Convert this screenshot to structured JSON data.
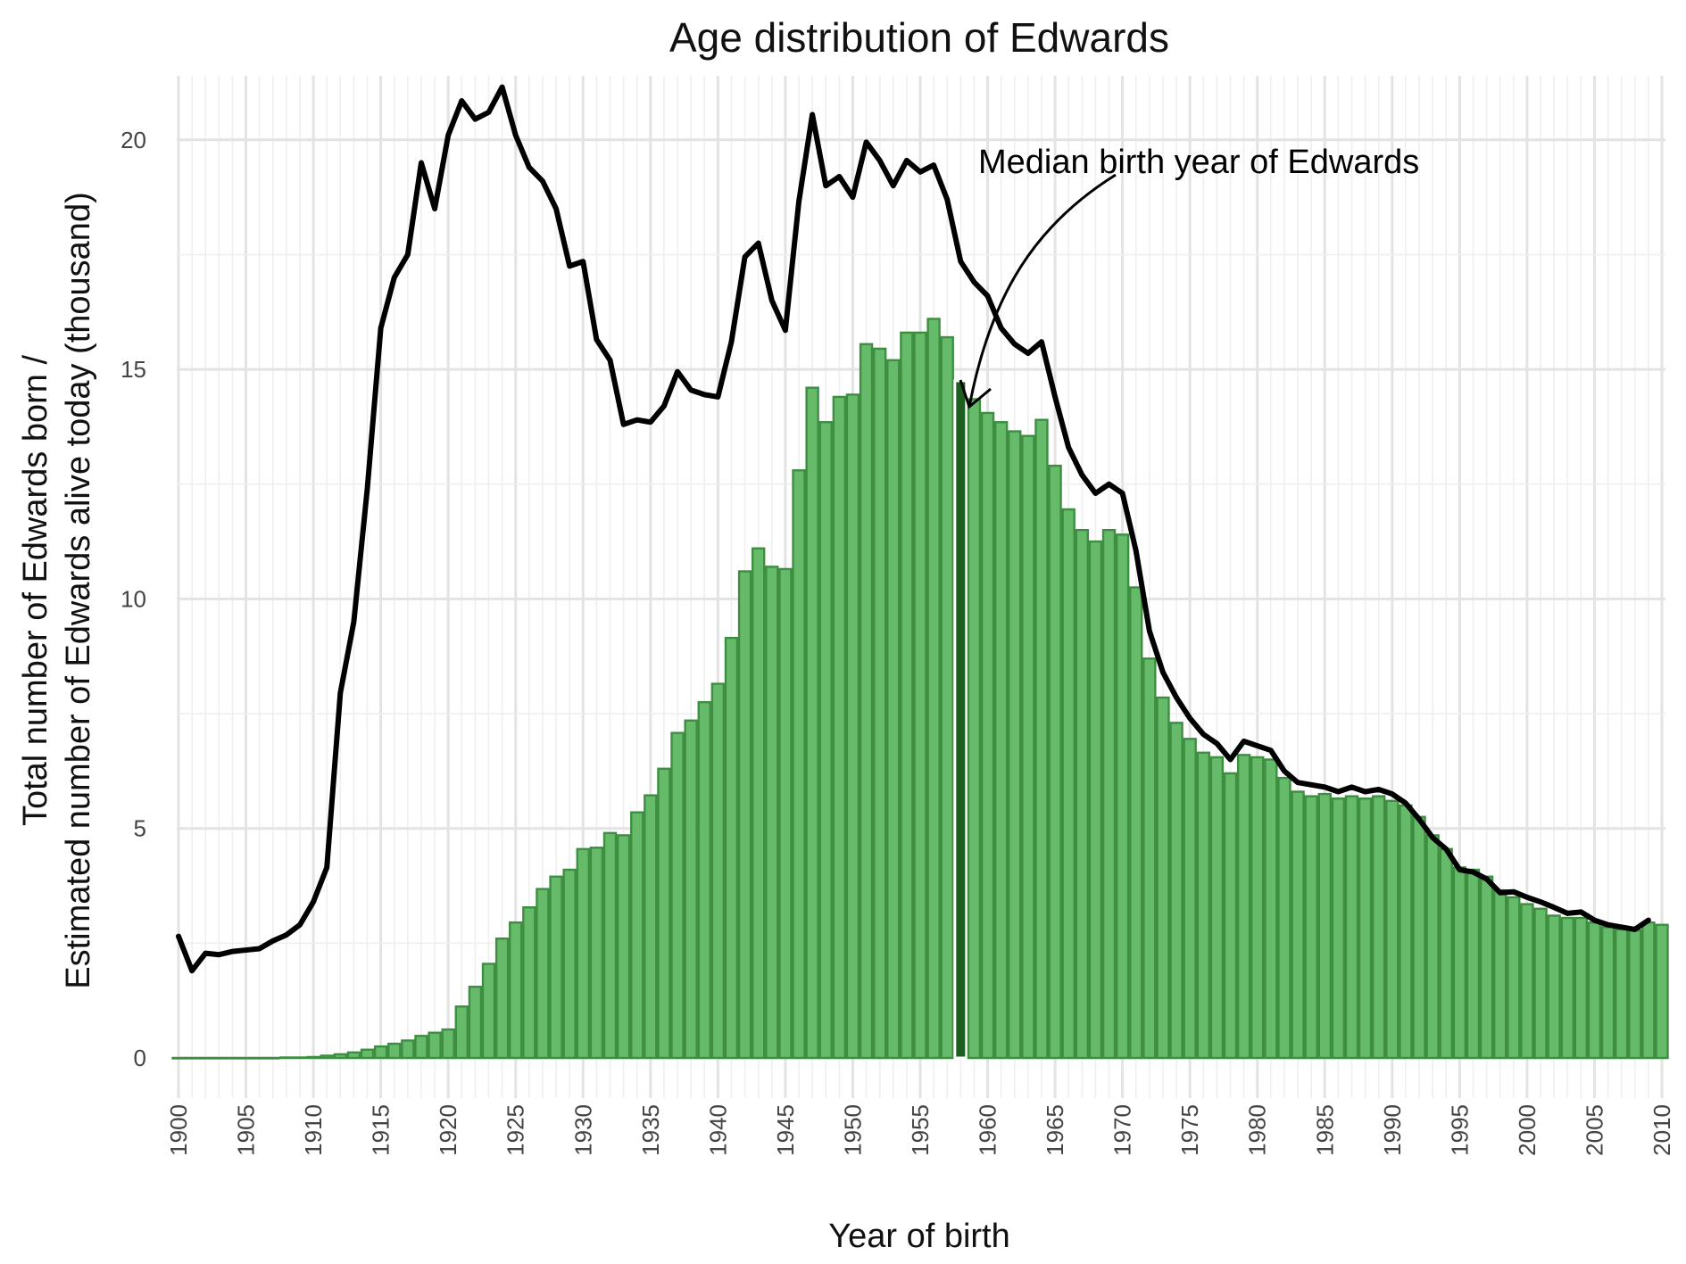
{
  "chart_data": {
    "type": "bar",
    "title": "Age distribution of Edwards",
    "xlabel": "Year of birth",
    "ylabel_line1": "Total number of Edwards born /",
    "ylabel_line2": "Estimated number of Edwards alive today (thousand)",
    "xlim": [
      1900,
      2010
    ],
    "ylim": [
      0,
      21.2
    ],
    "x_ticks": [
      1900,
      1905,
      1910,
      1915,
      1920,
      1925,
      1930,
      1935,
      1940,
      1945,
      1950,
      1955,
      1960,
      1965,
      1970,
      1975,
      1980,
      1985,
      1990,
      1995,
      2000,
      2005,
      2010
    ],
    "y_ticks": [
      0,
      5,
      10,
      15,
      20
    ],
    "grid": true,
    "colors": {
      "bars": "#66bb6a",
      "bar_outline": "#3e8e41",
      "median_bar": "#1b5e20",
      "line": "#000000"
    },
    "median_year": 1958,
    "annotation": "Median birth year of Edwards",
    "series": [
      {
        "type": "bar",
        "x": [
          1900,
          1901,
          1902,
          1903,
          1904,
          1905,
          1906,
          1907,
          1908,
          1909,
          1910,
          1911,
          1912,
          1913,
          1914,
          1915,
          1916,
          1917,
          1918,
          1919,
          1920,
          1921,
          1922,
          1923,
          1924,
          1925,
          1926,
          1927,
          1928,
          1929,
          1930,
          1931,
          1932,
          1933,
          1934,
          1935,
          1936,
          1937,
          1938,
          1939,
          1940,
          1941,
          1942,
          1943,
          1944,
          1945,
          1946,
          1947,
          1948,
          1949,
          1950,
          1951,
          1952,
          1953,
          1954,
          1955,
          1956,
          1957,
          1958,
          1959,
          1960,
          1961,
          1962,
          1963,
          1964,
          1965,
          1966,
          1967,
          1968,
          1969,
          1970,
          1971,
          1972,
          1973,
          1974,
          1975,
          1976,
          1977,
          1978,
          1979,
          1980,
          1981,
          1982,
          1983,
          1984,
          1985,
          1986,
          1987,
          1988,
          1989,
          1990,
          1991,
          1992,
          1993,
          1994,
          1995,
          1996,
          1997,
          1998,
          1999,
          2000,
          2001,
          2002,
          2003,
          2004,
          2005,
          2006,
          2007,
          2008,
          2009,
          2010
        ],
        "values": [
          0.0,
          0.0,
          0.0,
          0.0,
          0.0,
          0.0,
          0.0,
          0.0,
          0.01,
          0.01,
          0.02,
          0.05,
          0.08,
          0.12,
          0.18,
          0.25,
          0.31,
          0.38,
          0.48,
          0.55,
          0.62,
          1.12,
          1.55,
          2.05,
          2.6,
          2.95,
          3.28,
          3.68,
          3.95,
          4.1,
          4.55,
          4.58,
          4.9,
          4.85,
          5.35,
          5.72,
          6.3,
          7.08,
          7.35,
          7.75,
          8.15,
          9.15,
          10.6,
          11.1,
          10.7,
          10.65,
          12.8,
          14.6,
          13.85,
          14.4,
          14.45,
          15.55,
          15.45,
          15.2,
          15.8,
          15.8,
          16.1,
          15.7,
          14.75,
          14.35,
          14.05,
          13.85,
          13.65,
          13.55,
          13.9,
          12.9,
          11.95,
          11.5,
          11.25,
          11.5,
          11.4,
          10.25,
          8.7,
          7.85,
          7.3,
          6.95,
          6.65,
          6.55,
          6.2,
          6.6,
          6.55,
          6.5,
          6.1,
          5.8,
          5.7,
          5.75,
          5.65,
          5.7,
          5.65,
          5.7,
          5.6,
          5.5,
          5.25,
          4.85,
          4.55,
          4.15,
          4.1,
          3.95,
          3.65,
          3.5,
          3.35,
          3.25,
          3.1,
          3.05,
          3.05,
          2.95,
          2.85,
          2.8,
          2.78,
          2.95,
          2.9
        ]
      },
      {
        "type": "line",
        "x": [
          1900,
          1901,
          1902,
          1903,
          1904,
          1905,
          1906,
          1907,
          1908,
          1909,
          1910,
          1911,
          1912,
          1913,
          1914,
          1915,
          1916,
          1917,
          1918,
          1919,
          1920,
          1921,
          1922,
          1923,
          1924,
          1925,
          1926,
          1927,
          1928,
          1929,
          1930,
          1931,
          1932,
          1933,
          1934,
          1935,
          1936,
          1937,
          1938,
          1939,
          1940,
          1941,
          1942,
          1943,
          1944,
          1945,
          1946,
          1947,
          1948,
          1949,
          1950,
          1951,
          1952,
          1953,
          1954,
          1955,
          1956,
          1957,
          1958,
          1959,
          1960,
          1961,
          1962,
          1963,
          1964,
          1965,
          1966,
          1967,
          1968,
          1969,
          1970,
          1971,
          1972,
          1973,
          1974,
          1975,
          1976,
          1977,
          1978,
          1979,
          1980,
          1981,
          1982,
          1983,
          1984,
          1985,
          1986,
          1987,
          1988,
          1989,
          1990,
          1991,
          1992,
          1993,
          1994,
          1995,
          1996,
          1997,
          1998,
          1999,
          2000,
          2001,
          2002,
          2003,
          2004,
          2005,
          2006,
          2007,
          2008,
          2009
        ],
        "values": [
          2.65,
          1.9,
          2.28,
          2.25,
          2.32,
          2.35,
          2.38,
          2.55,
          2.68,
          2.9,
          3.4,
          4.15,
          7.95,
          9.5,
          12.4,
          15.9,
          17.0,
          17.5,
          19.5,
          18.5,
          20.1,
          20.85,
          20.45,
          20.6,
          21.15,
          20.1,
          19.4,
          19.1,
          18.5,
          17.25,
          17.35,
          15.65,
          15.2,
          13.8,
          13.9,
          13.85,
          14.2,
          14.95,
          14.55,
          14.45,
          14.4,
          15.6,
          17.45,
          17.75,
          16.5,
          15.85,
          18.65,
          20.55,
          19.0,
          19.2,
          18.75,
          19.95,
          19.55,
          19.0,
          19.55,
          19.3,
          19.45,
          18.7,
          17.35,
          16.9,
          16.6,
          15.9,
          15.55,
          15.35,
          15.6,
          14.4,
          13.3,
          12.7,
          12.3,
          12.5,
          12.3,
          11.05,
          9.3,
          8.4,
          7.85,
          7.4,
          7.05,
          6.85,
          6.5,
          6.9,
          6.8,
          6.7,
          6.25,
          6.0,
          5.95,
          5.9,
          5.8,
          5.9,
          5.8,
          5.85,
          5.75,
          5.55,
          5.2,
          4.8,
          4.55,
          4.1,
          4.05,
          3.9,
          3.6,
          3.62,
          3.5,
          3.4,
          3.28,
          3.15,
          3.18,
          3.0,
          2.9,
          2.85,
          2.8,
          3.0
        ]
      }
    ]
  }
}
